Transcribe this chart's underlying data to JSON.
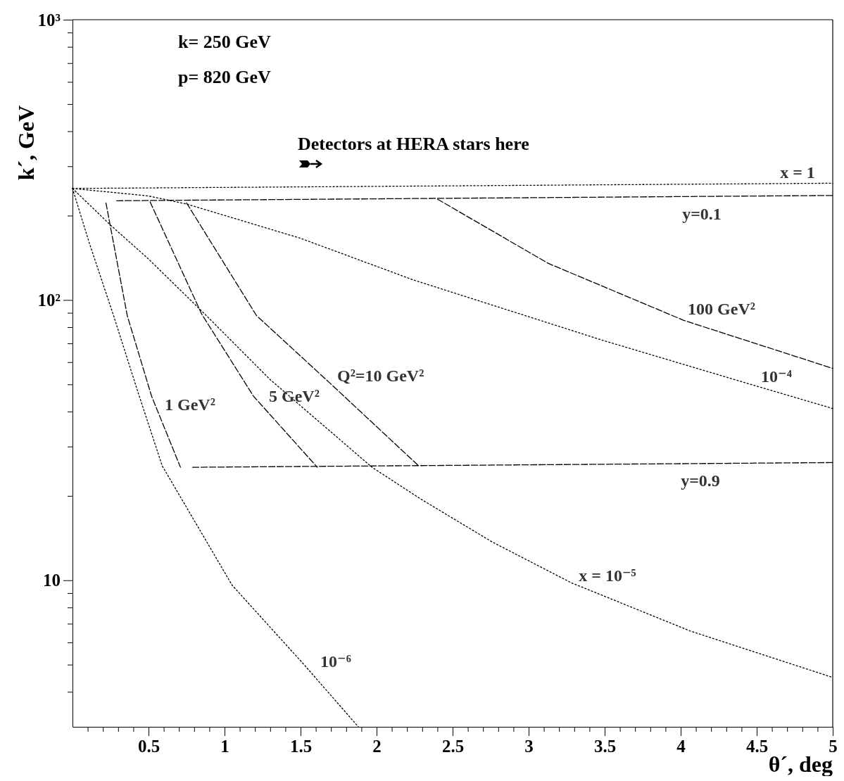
{
  "chart_data": {
    "type": "line",
    "xlabel": "θ´, deg",
    "ylabel": "k´, GeV",
    "log": "y",
    "xlim": [
      0,
      5
    ],
    "ylim": [
      3,
      1000
    ],
    "xticks": [
      {
        "value": 0.1,
        "label": null
      },
      {
        "value": 0.2,
        "label": null
      },
      {
        "value": 0.3,
        "label": null
      },
      {
        "value": 0.4,
        "label": null
      },
      0.5,
      {
        "value": 0.6,
        "label": null
      },
      {
        "value": 0.7,
        "label": null
      },
      {
        "value": 0.8,
        "label": null
      },
      {
        "value": 0.9,
        "label": null
      },
      1,
      {
        "value": 1.1,
        "label": null
      },
      {
        "value": 1.2,
        "label": null
      },
      {
        "value": 1.3,
        "label": null
      },
      {
        "value": 1.4,
        "label": null
      },
      1.5,
      {
        "value": 1.6,
        "label": null
      },
      {
        "value": 1.7,
        "label": null
      },
      {
        "value": 1.8,
        "label": null
      },
      {
        "value": 1.9,
        "label": null
      },
      2,
      {
        "value": 2.1,
        "label": null
      },
      {
        "value": 2.2,
        "label": null
      },
      {
        "value": 2.3,
        "label": null
      },
      {
        "value": 2.4,
        "label": null
      },
      2.5,
      {
        "value": 2.6,
        "label": null
      },
      {
        "value": 2.7,
        "label": null
      },
      {
        "value": 2.8,
        "label": null
      },
      {
        "value": 2.9,
        "label": null
      },
      3,
      {
        "value": 3.1,
        "label": null
      },
      {
        "value": 3.2,
        "label": null
      },
      {
        "value": 3.3,
        "label": null
      },
      {
        "value": 3.4,
        "label": null
      },
      3.5,
      {
        "value": 3.6,
        "label": null
      },
      {
        "value": 3.7,
        "label": null
      },
      {
        "value": 3.8,
        "label": null
      },
      {
        "value": 3.9,
        "label": null
      },
      4,
      {
        "value": 4.1,
        "label": null
      },
      {
        "value": 4.2,
        "label": null
      },
      {
        "value": 4.3,
        "label": null
      },
      {
        "value": 4.4,
        "label": null
      },
      4.5,
      {
        "value": 4.6,
        "label": null
      },
      {
        "value": 4.7,
        "label": null
      },
      {
        "value": 4.8,
        "label": null
      },
      {
        "value": 4.9,
        "label": null
      },
      5
    ],
    "yticks": [
      {
        "value": 4,
        "label": null
      },
      {
        "value": 5,
        "label": null
      },
      {
        "value": 6,
        "label": null
      },
      {
        "value": 7,
        "label": null
      },
      {
        "value": 8,
        "label": null
      },
      {
        "value": 9,
        "label": null
      },
      10,
      {
        "value": 20,
        "label": null
      },
      {
        "value": 30,
        "label": null
      },
      {
        "value": 40,
        "label": null
      },
      {
        "value": 50,
        "label": null
      },
      {
        "value": 60,
        "label": null
      },
      {
        "value": 70,
        "label": null
      },
      {
        "value": 80,
        "label": null
      },
      {
        "value": 90,
        "label": null
      },
      {
        "value": 100,
        "label": "10²"
      },
      {
        "value": 200,
        "label": null
      },
      {
        "value": 300,
        "label": null
      },
      {
        "value": 400,
        "label": null
      },
      {
        "value": 500,
        "label": null
      },
      {
        "value": 600,
        "label": null
      },
      {
        "value": 700,
        "label": null
      },
      {
        "value": 800,
        "label": null
      },
      {
        "value": 900,
        "label": null
      },
      {
        "value": 1000,
        "label": "10³"
      }
    ],
    "series": [
      {
        "name": "x = 1",
        "color": "#000000",
        "line_style": "dotted",
        "x": [
          0,
          5
        ],
        "values": [
          250,
          261
        ]
      },
      {
        "name": "10⁻⁴",
        "color": "#000000",
        "line_style": "dotted",
        "x": [
          0,
          0.5,
          0.75,
          1.5,
          2.24,
          3.48,
          4.46,
          5
        ],
        "values": [
          250,
          235,
          220,
          166,
          118,
          72,
          50,
          41
        ]
      },
      {
        "name": "x = 10⁻⁵",
        "color": "#000000",
        "line_style": "dotted",
        "x": [
          0,
          0.25,
          0.5,
          0.88,
          1.3,
          1.97,
          2.29,
          2.76,
          3.28,
          4.06,
          5
        ],
        "values": [
          250,
          185,
          140,
          88,
          52,
          25.3,
          19.5,
          13.7,
          9.8,
          6.6,
          4.5
        ]
      },
      {
        "name": "10⁻⁶",
        "color": "#000000",
        "line_style": "dotted",
        "x": [
          0,
          0.11,
          0.27,
          0.43,
          0.59,
          1.05,
          1.53,
          1.88
        ],
        "values": [
          250,
          160,
          88,
          47,
          25.6,
          9.6,
          4.95,
          3.0
        ]
      },
      {
        "name": "y=0.1",
        "color": "#000000",
        "line_style": "dashed",
        "x": [
          0.29,
          5
        ],
        "values": [
          226,
          236
        ]
      },
      {
        "name": "y=0.9",
        "color": "#000000",
        "line_style": "dashed",
        "x": [
          0.79,
          5
        ],
        "values": [
          25.3,
          26.3
        ]
      },
      {
        "name": "1 GeV²",
        "color": "#000000",
        "line_style": "dashed",
        "x": [
          0.22,
          0.36,
          0.52,
          0.71
        ],
        "values": [
          222,
          88,
          45.4,
          25.3
        ]
      },
      {
        "name": "5 GeV²",
        "color": "#000000",
        "line_style": "dashed",
        "x": [
          0.51,
          0.85,
          1.19,
          1.61
        ],
        "values": [
          224,
          89,
          45.4,
          25.3
        ]
      },
      {
        "name": "Q²=10 GeV²",
        "color": "#000000",
        "line_style": "dashed",
        "x": [
          0.75,
          1.21,
          1.69,
          2.27
        ],
        "values": [
          222,
          88,
          50.7,
          25.8
        ]
      },
      {
        "name": "100 GeV²",
        "color": "#000000",
        "line_style": "dashed",
        "x": [
          2.4,
          3.13,
          4.02,
          5
        ],
        "values": [
          229,
          135,
          84.6,
          57
        ]
      }
    ],
    "annotations": [
      "k= 250 GeV",
      "p= 820 GeV",
      "Detectors at HERA stars here"
    ]
  }
}
